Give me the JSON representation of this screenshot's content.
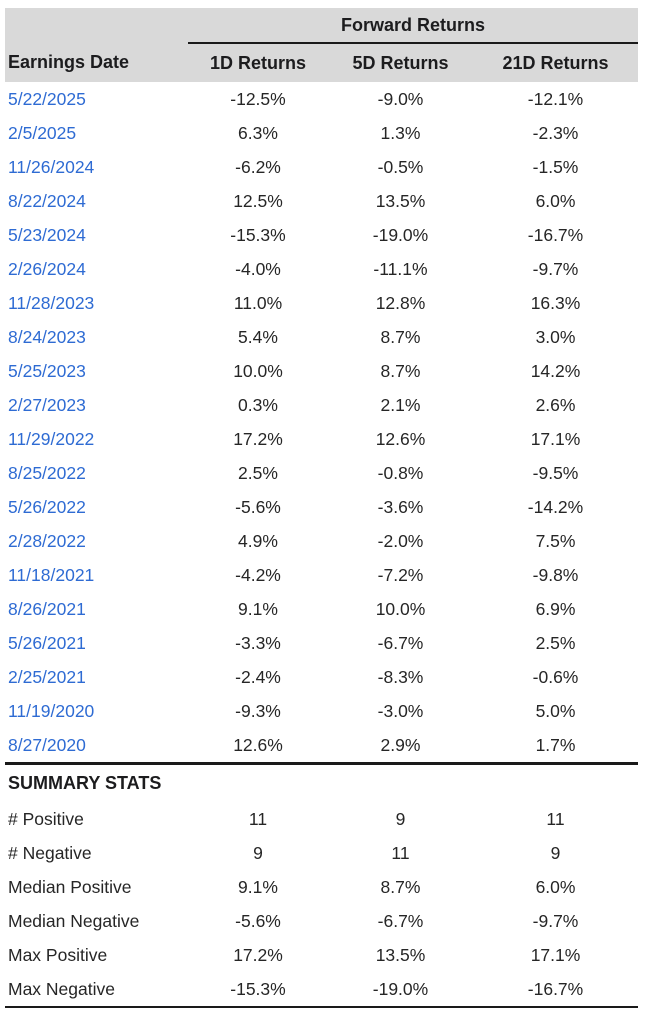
{
  "chart_data": {
    "type": "table",
    "title": "Forward Returns",
    "columns": [
      "Earnings Date",
      "1D Returns",
      "5D Returns",
      "21D Returns"
    ],
    "value_format": "percent_1dp",
    "rows": [
      [
        "5/22/2025",
        -12.5,
        -9.0,
        -12.1
      ],
      [
        "2/5/2025",
        6.3,
        1.3,
        -2.3
      ],
      [
        "11/26/2024",
        -6.2,
        -0.5,
        -1.5
      ],
      [
        "8/22/2024",
        12.5,
        13.5,
        6.0
      ],
      [
        "5/23/2024",
        -15.3,
        -19.0,
        -16.7
      ],
      [
        "2/26/2024",
        -4.0,
        -11.1,
        -9.7
      ],
      [
        "11/28/2023",
        11.0,
        12.8,
        16.3
      ],
      [
        "8/24/2023",
        5.4,
        8.7,
        3.0
      ],
      [
        "5/25/2023",
        10.0,
        8.7,
        14.2
      ],
      [
        "2/27/2023",
        0.3,
        2.1,
        2.6
      ],
      [
        "11/29/2022",
        17.2,
        12.6,
        17.1
      ],
      [
        "8/25/2022",
        2.5,
        -0.8,
        -9.5
      ],
      [
        "5/26/2022",
        -5.6,
        -3.6,
        -14.2
      ],
      [
        "2/28/2022",
        4.9,
        -2.0,
        7.5
      ],
      [
        "11/18/2021",
        -4.2,
        -7.2,
        -9.8
      ],
      [
        "8/26/2021",
        9.1,
        10.0,
        6.9
      ],
      [
        "5/26/2021",
        -3.3,
        -6.7,
        2.5
      ],
      [
        "2/25/2021",
        -2.4,
        -8.3,
        -0.6
      ],
      [
        "11/19/2020",
        -9.3,
        -3.0,
        5.0
      ],
      [
        "8/27/2020",
        12.6,
        2.9,
        1.7
      ]
    ],
    "summary": {
      "title": "SUMMARY STATS",
      "rows": [
        {
          "label": "# Positive",
          "values": [
            11,
            9,
            11
          ],
          "is_percent": false
        },
        {
          "label": "# Negative",
          "values": [
            9,
            11,
            9
          ],
          "is_percent": false
        },
        {
          "label": "Median Positive",
          "values": [
            9.1,
            8.7,
            6.0
          ],
          "is_percent": true
        },
        {
          "label": "Median Negative",
          "values": [
            -5.6,
            -6.7,
            -9.7
          ],
          "is_percent": true
        },
        {
          "label": "Max Positive",
          "values": [
            17.2,
            13.5,
            17.1
          ],
          "is_percent": true
        },
        {
          "label": "Max Negative",
          "values": [
            -15.3,
            -19.0,
            -16.7
          ],
          "is_percent": true
        }
      ]
    }
  },
  "colors": {
    "header_bg": "#d9d9d9",
    "rule": "#1a1a1a",
    "text": "#262626",
    "date_link": "#2e6bd3"
  }
}
